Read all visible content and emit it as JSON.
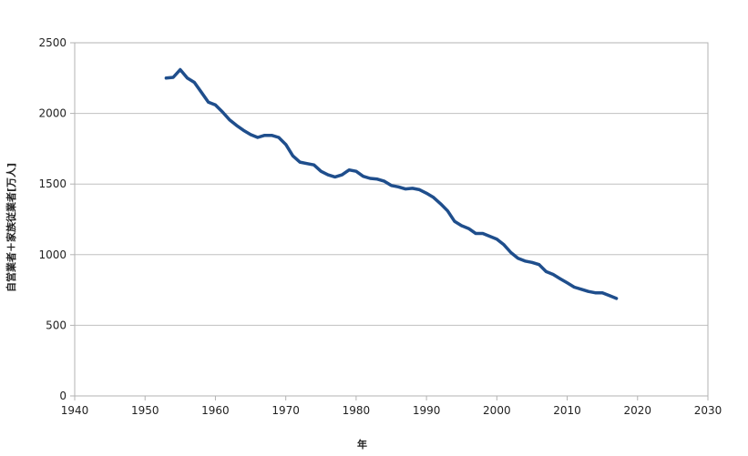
{
  "chart_data": {
    "type": "line",
    "title": "",
    "xlabel": "年",
    "ylabel": "自営業者＋家族従業者[万人]",
    "xlim": [
      1940,
      2030
    ],
    "ylim": [
      0,
      2500
    ],
    "x_ticks": [
      1940,
      1950,
      1960,
      1970,
      1980,
      1990,
      2000,
      2010,
      2020,
      2030
    ],
    "y_ticks": [
      0,
      500,
      1000,
      1500,
      2000,
      2500
    ],
    "grid": "horizontal",
    "legend": "none",
    "series": [
      {
        "color": "#1f4e8c",
        "x": [
          1953,
          1954,
          1955,
          1956,
          1957,
          1958,
          1959,
          1960,
          1961,
          1962,
          1963,
          1964,
          1965,
          1966,
          1967,
          1968,
          1969,
          1970,
          1971,
          1972,
          1973,
          1974,
          1975,
          1976,
          1977,
          1978,
          1979,
          1980,
          1981,
          1982,
          1983,
          1984,
          1985,
          1986,
          1987,
          1988,
          1989,
          1990,
          1991,
          1992,
          1993,
          1994,
          1995,
          1996,
          1997,
          1998,
          1999,
          2000,
          2001,
          2002,
          2003,
          2004,
          2005,
          2006,
          2007,
          2008,
          2009,
          2010,
          2011,
          2012,
          2013,
          2014,
          2015,
          2016,
          2017
        ],
        "y": [
          2250,
          2255,
          2310,
          2250,
          2220,
          2150,
          2080,
          2060,
          2010,
          1955,
          1915,
          1880,
          1850,
          1830,
          1845,
          1845,
          1830,
          1780,
          1700,
          1655,
          1645,
          1635,
          1590,
          1565,
          1550,
          1565,
          1600,
          1590,
          1555,
          1540,
          1535,
          1520,
          1490,
          1480,
          1465,
          1470,
          1460,
          1435,
          1405,
          1360,
          1310,
          1235,
          1205,
          1185,
          1150,
          1150,
          1130,
          1110,
          1070,
          1015,
          975,
          955,
          945,
          930,
          880,
          860,
          830,
          800,
          770,
          755,
          740,
          730,
          730,
          710,
          690
        ]
      }
    ]
  }
}
